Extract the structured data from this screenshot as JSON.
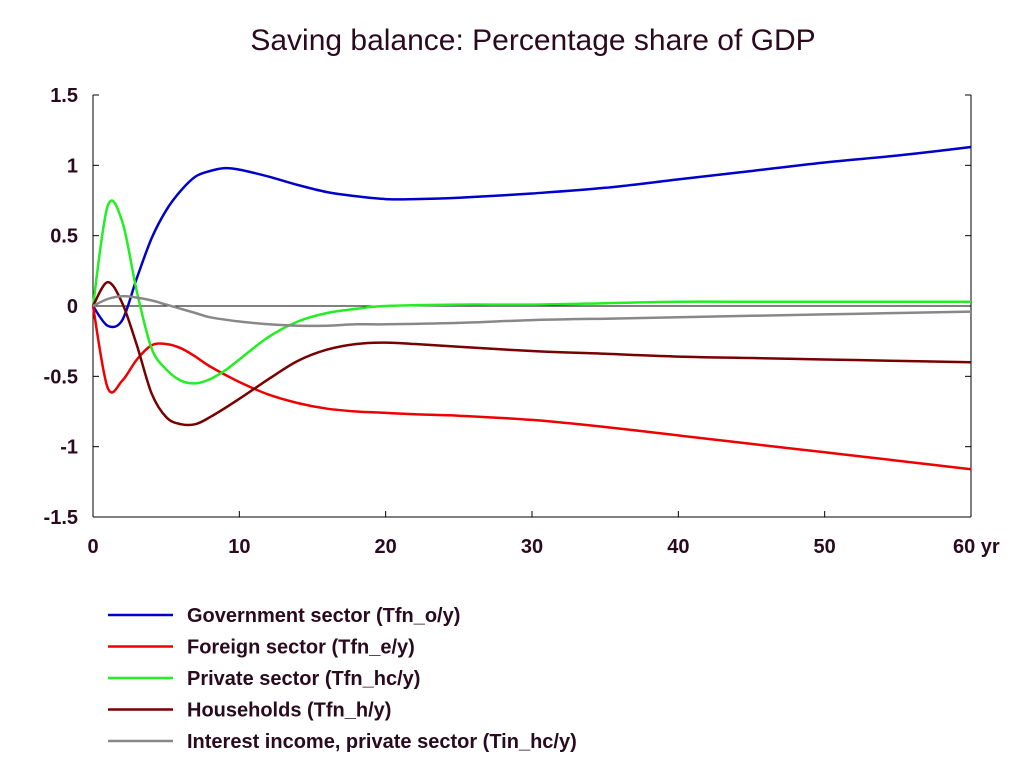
{
  "chart_data": {
    "type": "line",
    "title": "Saving balance: Percentage share of GDP",
    "xlabel": "",
    "ylabel": "",
    "x_unit_label": "yr",
    "xlim": [
      0,
      60
    ],
    "ylim": [
      -1.5,
      1.5
    ],
    "x_ticks": [
      0,
      10,
      20,
      30,
      40,
      50,
      60
    ],
    "y_ticks": [
      1.5,
      1,
      0.5,
      0,
      -0.5,
      -1,
      -1.5
    ],
    "x_tick_labels": [
      "0",
      "10",
      "20",
      "30",
      "40",
      "50",
      "60 yr"
    ],
    "y_tick_labels": [
      "1.5",
      "1",
      "0.5",
      "0",
      "-0.5",
      "-1",
      "-1.5"
    ],
    "zero_line": true,
    "grid": false,
    "legend_position": "bottom",
    "series": [
      {
        "name": "Government sector (Tfn_o/y)",
        "color": "#0000cc",
        "points": [
          [
            0,
            0
          ],
          [
            1,
            -0.14
          ],
          [
            2,
            -0.1
          ],
          [
            3,
            0.2
          ],
          [
            4,
            0.48
          ],
          [
            5,
            0.68
          ],
          [
            6,
            0.82
          ],
          [
            7,
            0.92
          ],
          [
            8,
            0.96
          ],
          [
            9,
            0.98
          ],
          [
            10,
            0.97
          ],
          [
            12,
            0.92
          ],
          [
            14,
            0.86
          ],
          [
            16,
            0.81
          ],
          [
            18,
            0.78
          ],
          [
            20,
            0.76
          ],
          [
            22,
            0.76
          ],
          [
            25,
            0.77
          ],
          [
            30,
            0.8
          ],
          [
            35,
            0.84
          ],
          [
            40,
            0.9
          ],
          [
            45,
            0.96
          ],
          [
            50,
            1.02
          ],
          [
            55,
            1.07
          ],
          [
            60,
            1.13
          ]
        ]
      },
      {
        "name": "Foreign sector (Tfn_e/y)",
        "color": "#ee0000",
        "points": [
          [
            0,
            0
          ],
          [
            1,
            -0.58
          ],
          [
            2,
            -0.53
          ],
          [
            3,
            -0.38
          ],
          [
            4,
            -0.28
          ],
          [
            5,
            -0.27
          ],
          [
            6,
            -0.3
          ],
          [
            7,
            -0.36
          ],
          [
            8,
            -0.43
          ],
          [
            10,
            -0.54
          ],
          [
            12,
            -0.63
          ],
          [
            14,
            -0.69
          ],
          [
            16,
            -0.73
          ],
          [
            18,
            -0.75
          ],
          [
            20,
            -0.76
          ],
          [
            22,
            -0.77
          ],
          [
            25,
            -0.78
          ],
          [
            30,
            -0.81
          ],
          [
            35,
            -0.86
          ],
          [
            40,
            -0.92
          ],
          [
            45,
            -0.98
          ],
          [
            50,
            -1.04
          ],
          [
            55,
            -1.1
          ],
          [
            60,
            -1.16
          ]
        ]
      },
      {
        "name": "Private sector (Tfn_hc/y)",
        "color": "#22ee22",
        "points": [
          [
            0,
            0
          ],
          [
            1,
            0.71
          ],
          [
            2,
            0.6
          ],
          [
            3,
            0.1
          ],
          [
            4,
            -0.3
          ],
          [
            5,
            -0.45
          ],
          [
            6,
            -0.53
          ],
          [
            7,
            -0.55
          ],
          [
            8,
            -0.52
          ],
          [
            9,
            -0.46
          ],
          [
            10,
            -0.38
          ],
          [
            12,
            -0.22
          ],
          [
            14,
            -0.11
          ],
          [
            16,
            -0.05
          ],
          [
            18,
            -0.02
          ],
          [
            20,
            0
          ],
          [
            25,
            0.01
          ],
          [
            30,
            0.01
          ],
          [
            35,
            0.02
          ],
          [
            40,
            0.03
          ],
          [
            45,
            0.03
          ],
          [
            50,
            0.03
          ],
          [
            55,
            0.03
          ],
          [
            60,
            0.03
          ]
        ]
      },
      {
        "name": "Households (Tfn_h/y)",
        "color": "#770000",
        "points": [
          [
            0,
            0
          ],
          [
            1,
            0.17
          ],
          [
            2,
            0.02
          ],
          [
            3,
            -0.28
          ],
          [
            4,
            -0.62
          ],
          [
            5,
            -0.79
          ],
          [
            6,
            -0.84
          ],
          [
            7,
            -0.84
          ],
          [
            8,
            -0.79
          ],
          [
            10,
            -0.66
          ],
          [
            12,
            -0.52
          ],
          [
            14,
            -0.39
          ],
          [
            16,
            -0.31
          ],
          [
            18,
            -0.27
          ],
          [
            20,
            -0.26
          ],
          [
            22,
            -0.27
          ],
          [
            25,
            -0.29
          ],
          [
            30,
            -0.32
          ],
          [
            35,
            -0.34
          ],
          [
            40,
            -0.36
          ],
          [
            45,
            -0.37
          ],
          [
            50,
            -0.38
          ],
          [
            55,
            -0.39
          ],
          [
            60,
            -0.4
          ]
        ]
      },
      {
        "name": "Interest income, private sector (Tin_hc/y)",
        "color": "#888888",
        "points": [
          [
            0,
            0
          ],
          [
            1,
            0.05
          ],
          [
            2,
            0.07
          ],
          [
            3,
            0.06
          ],
          [
            4,
            0.04
          ],
          [
            5,
            0.01
          ],
          [
            6,
            -0.02
          ],
          [
            7,
            -0.05
          ],
          [
            8,
            -0.08
          ],
          [
            10,
            -0.11
          ],
          [
            12,
            -0.13
          ],
          [
            14,
            -0.14
          ],
          [
            16,
            -0.14
          ],
          [
            18,
            -0.13
          ],
          [
            20,
            -0.13
          ],
          [
            25,
            -0.12
          ],
          [
            30,
            -0.1
          ],
          [
            35,
            -0.09
          ],
          [
            40,
            -0.08
          ],
          [
            45,
            -0.07
          ],
          [
            50,
            -0.06
          ],
          [
            55,
            -0.05
          ],
          [
            60,
            -0.04
          ]
        ]
      }
    ]
  }
}
